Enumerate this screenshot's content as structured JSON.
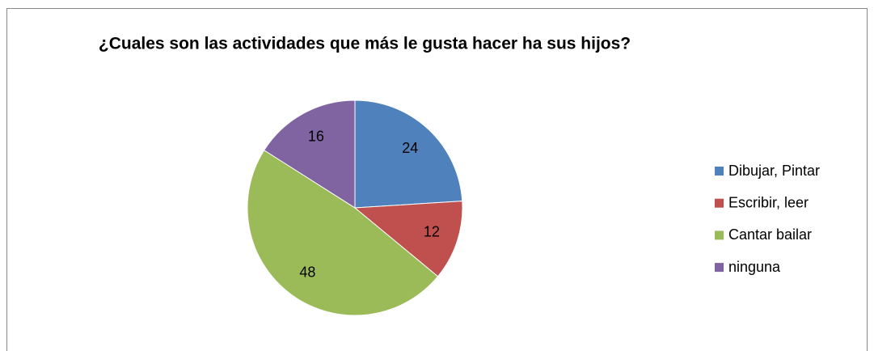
{
  "chart_data": {
    "type": "pie",
    "title": "¿Cuales son las actividades que más le gusta hacer ha sus hijos?",
    "categories": [
      "Dibujar, Pintar",
      "Escribir, leer",
      "Cantar bailar",
      "ninguna"
    ],
    "values": [
      24,
      12,
      48,
      16
    ],
    "colors": [
      "#4f81bd",
      "#c0504d",
      "#9bbb59",
      "#8064a2"
    ],
    "legend": "right"
  }
}
